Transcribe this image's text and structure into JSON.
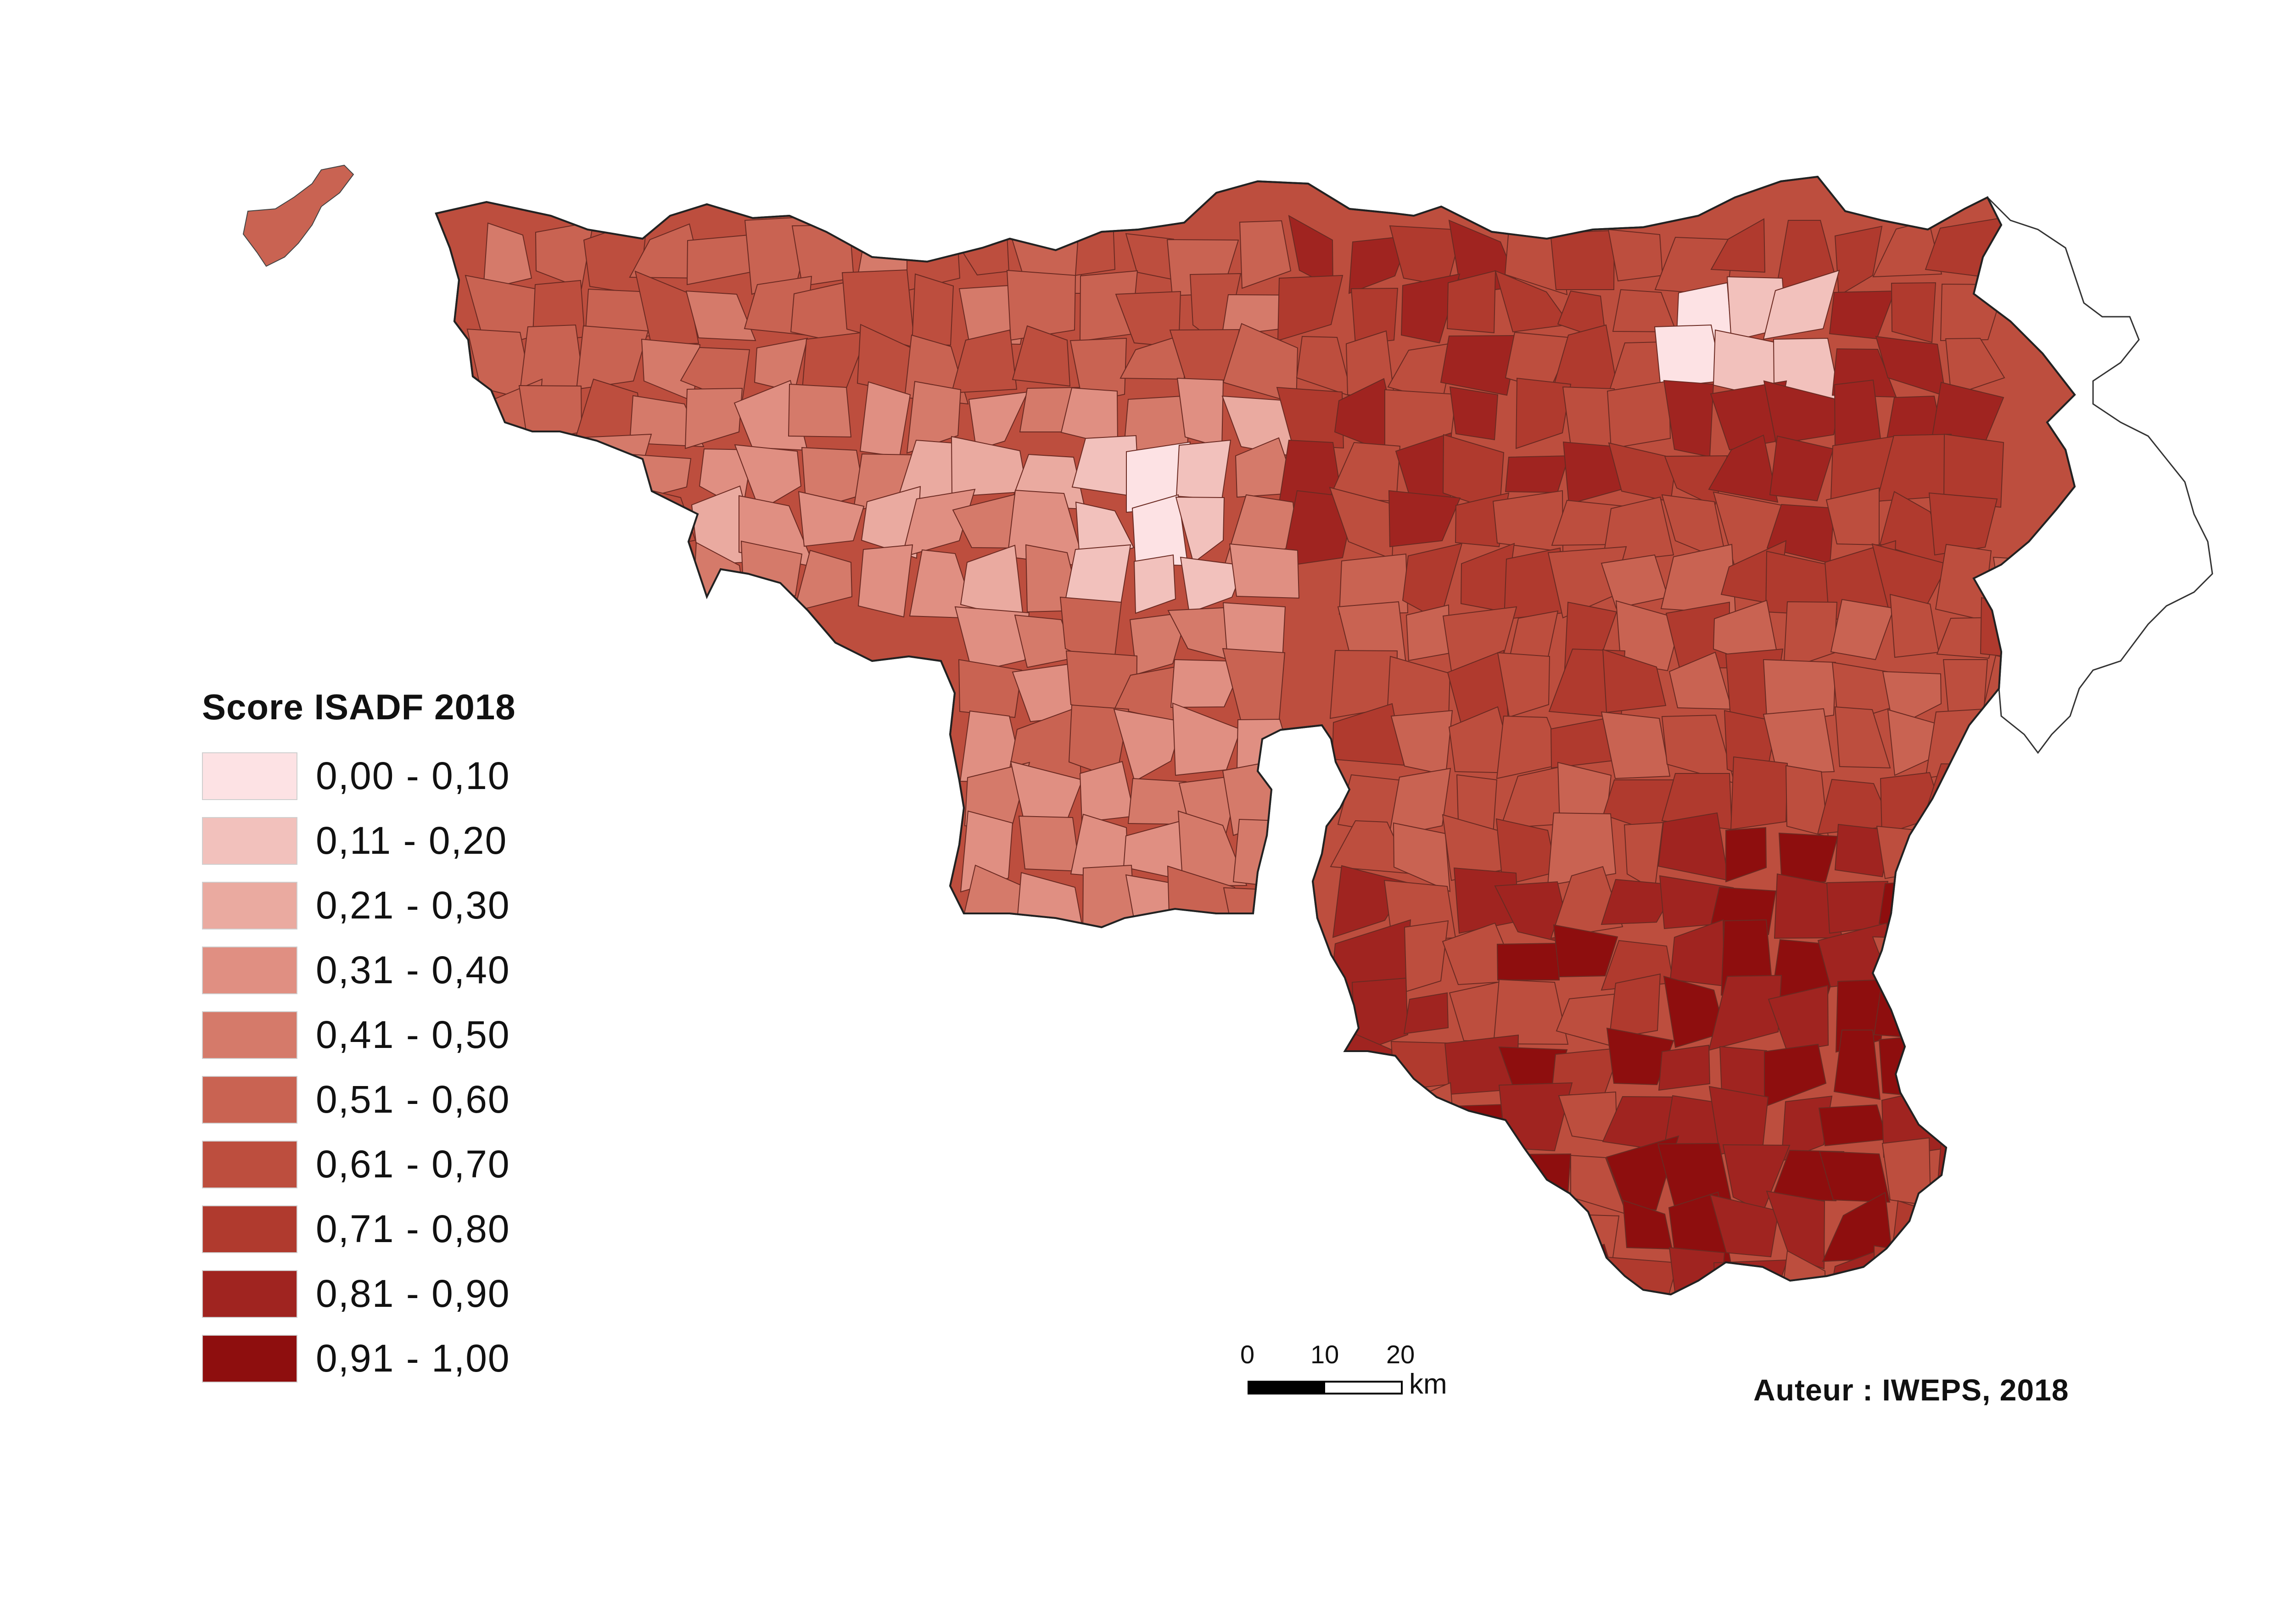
{
  "legend": {
    "title": "Score ISADF 2018",
    "classes": [
      {
        "label": "0,00 - 0,10",
        "color": "#fde2e4"
      },
      {
        "label": "0,11 - 0,20",
        "color": "#f2c1bc"
      },
      {
        "label": "0,21 - 0,30",
        "color": "#eaaaa0"
      },
      {
        "label": "0,31 - 0,40",
        "color": "#e08f82"
      },
      {
        "label": "0,41 - 0,50",
        "color": "#d57a6a"
      },
      {
        "label": "0,51 - 0,60",
        "color": "#c96352"
      },
      {
        "label": "0,61 - 0,70",
        "color": "#bd4e3e"
      },
      {
        "label": "0,71 - 0,80",
        "color": "#b03a2e"
      },
      {
        "label": "0,81 - 0,90",
        "color": "#a02420"
      },
      {
        "label": "0,91 - 1,00",
        "color": "#8e0e0e"
      }
    ]
  },
  "scalebar": {
    "ticks": [
      "0",
      "10",
      "20"
    ],
    "unit": "km"
  },
  "credit": "Auteur : IWEPS, 2018"
}
